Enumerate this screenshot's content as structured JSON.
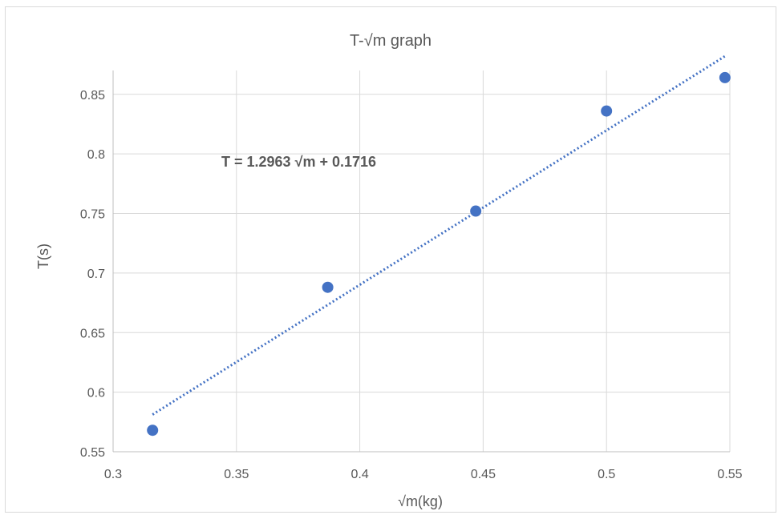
{
  "chart_data": {
    "type": "scatter",
    "title": "T-√m graph",
    "xlabel": "√m(kg)",
    "ylabel": "T(s)",
    "xlim": [
      0.3,
      0.55
    ],
    "ylim": [
      0.55,
      0.87
    ],
    "x_ticks": [
      "0.3",
      "0.35",
      "0.4",
      "0.45",
      "0.5",
      "0.55"
    ],
    "y_ticks": [
      "0.55",
      "0.6",
      "0.65",
      "0.7",
      "0.75",
      "0.8",
      "0.85"
    ],
    "grid": true,
    "series": [
      {
        "x": [
          0.316,
          0.387,
          0.447,
          0.5,
          0.548
        ],
        "y": [
          0.568,
          0.688,
          0.752,
          0.836,
          0.864
        ]
      }
    ],
    "trendline": {
      "type": "linear",
      "slope": 1.2963,
      "intercept": 0.1716,
      "x_range": [
        0.316,
        0.548
      ],
      "style": "dotted"
    },
    "equation_label": "T = 1.2963 √m + 0.1716",
    "colors": {
      "marker": "#4472c4",
      "trendline": "#4472c4",
      "grid": "#d9d9d9",
      "text": "#595959"
    }
  }
}
